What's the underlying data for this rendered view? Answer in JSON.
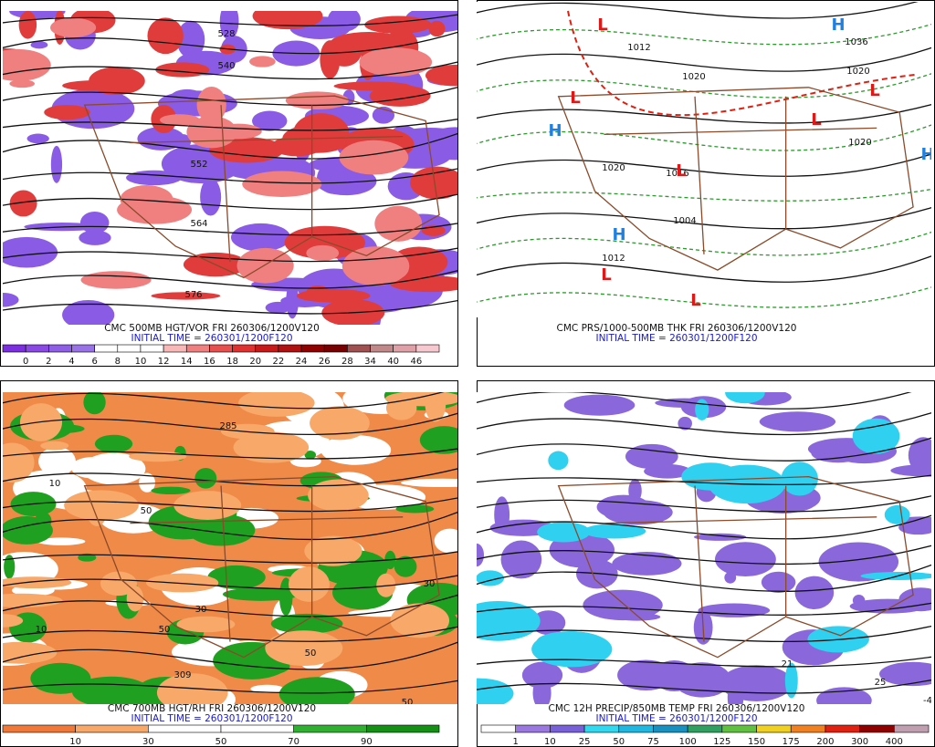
{
  "panels": [
    {
      "title": "CMC 500MB HGT/VOR FRI 260306/1200V120",
      "initial_time": "INITIAL TIME = 260301/1200F120",
      "colorbar": {
        "labels": [
          0,
          2,
          4,
          6,
          8,
          10,
          12,
          14,
          16,
          18,
          20,
          22,
          24,
          26,
          28,
          34,
          40,
          46
        ],
        "colors": [
          "#7b2fe0",
          "#8a48e4",
          "#8e5ee6",
          "#9a72e8",
          "#ffffff",
          "#ffffff",
          "#ffffff",
          "#f8b8b8",
          "#f08080",
          "#e85050",
          "#e03030",
          "#c81818",
          "#b01010",
          "#900000",
          "#780000",
          "#a05050",
          "#c08888",
          "#e0a0a8",
          "#f8c8d0"
        ]
      },
      "map_labels": [
        "528",
        "540",
        "552",
        "564",
        "576"
      ]
    },
    {
      "title": "CMC PRS/1000-500MB THK FRI 260306/1200V120",
      "initial_time": "INITIAL TIME = 260301/1200F120",
      "map_labels": [
        "1012",
        "1020",
        "1020",
        "1016",
        "1004",
        "1012",
        "1020",
        "1020",
        "1036"
      ],
      "pressure_centers": [
        "L",
        "L",
        "L",
        "L",
        "L",
        "L",
        "L",
        "H",
        "H",
        "H",
        "H"
      ]
    },
    {
      "title": "CMC 700MB HGT/RH FRI 260306/1200V120",
      "initial_time": "INITIAL TIME = 260301/1200F120",
      "colorbar": {
        "labels": [
          10,
          30,
          50,
          70,
          90
        ],
        "colors": [
          "#f07838",
          "#f8a868",
          "#ffffff",
          "#ffffff",
          "#30b030",
          "#149014"
        ]
      },
      "map_labels": [
        "285",
        "10",
        "50",
        "30",
        "50",
        "10",
        "309",
        "50",
        "30",
        "50"
      ]
    },
    {
      "title": "CMC 12H PRECIP/850MB TEMP FRI 260306/1200V120",
      "initial_time": "INITIAL TIME = 260301/1200F120",
      "colorbar": {
        "labels": [
          1,
          10,
          25,
          50,
          75,
          100,
          125,
          150,
          175,
          200,
          300,
          400
        ],
        "colors": [
          "#ffffff",
          "#9a78e0",
          "#7860d8",
          "#30d8f0",
          "#20b8e0",
          "#1890c0",
          "#30a060",
          "#60c040",
          "#f0d020",
          "#f08020",
          "#e02010",
          "#900000",
          "#c0a0b0"
        ]
      },
      "map_labels": [
        "21",
        "25",
        "-4"
      ]
    }
  ]
}
